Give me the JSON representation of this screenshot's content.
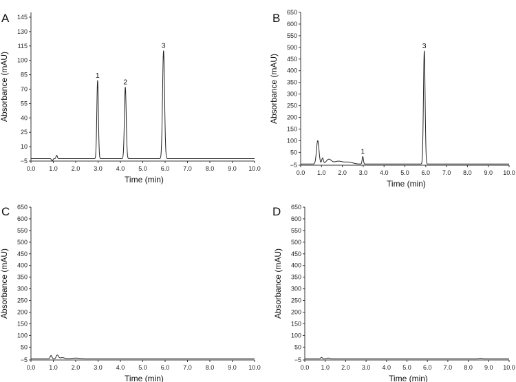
{
  "chart_data": [
    {
      "panel": "A",
      "type": "line",
      "xlabel": "Time (min)",
      "ylabel": "Absorbance (mAU)",
      "xlim": [
        0,
        10
      ],
      "ylim": [
        -5,
        150
      ],
      "xticks": [
        0,
        1,
        2,
        3,
        4,
        5,
        6,
        7,
        8,
        9,
        10
      ],
      "yticks": [
        -5,
        10,
        25,
        40,
        55,
        70,
        85,
        100,
        115,
        130,
        145
      ],
      "xtick_labels": [
        "0.0",
        "1.0",
        "2.0",
        "3.0",
        "4.0",
        "5.0",
        "6.0",
        "7.0",
        "8.0",
        "9.0",
        "10.0"
      ],
      "ytick_labels": [
        "−5",
        "10",
        "25",
        "40",
        "55",
        "70",
        "85",
        "100",
        "115",
        "130",
        "145"
      ],
      "grid": false,
      "baseline": -2.5,
      "peaks": [
        {
          "x": 0.95,
          "y": -5,
          "w": 0.03
        },
        {
          "x": 1.15,
          "y": 1,
          "w": 0.03
        },
        {
          "x": 2.98,
          "y": 79,
          "w": 0.035
        },
        {
          "x": 4.22,
          "y": 72,
          "w": 0.04
        },
        {
          "x": 5.93,
          "y": 110,
          "w": 0.045
        }
      ],
      "annotations": [
        {
          "text": "1",
          "x": 2.98,
          "y": 79
        },
        {
          "text": "2",
          "x": 4.22,
          "y": 72
        },
        {
          "text": "3",
          "x": 5.93,
          "y": 110
        }
      ]
    },
    {
      "panel": "B",
      "type": "line",
      "xlabel": "Time (min)",
      "ylabel": "Absorbance (mAU)",
      "xlim": [
        0,
        10
      ],
      "ylim": [
        -5,
        650
      ],
      "xticks": [
        0,
        1,
        2,
        3,
        4,
        5,
        6,
        7,
        8,
        9,
        10
      ],
      "yticks": [
        -5,
        50,
        100,
        150,
        200,
        250,
        300,
        350,
        400,
        450,
        500,
        550,
        600,
        650
      ],
      "xtick_labels": [
        "0.0",
        "1.0",
        "2.0",
        "3.0",
        "4.0",
        "5.0",
        "6.0",
        "7.0",
        "8.0",
        "9.0",
        "10.0"
      ],
      "ytick_labels": [
        "−5",
        "50",
        "100",
        "150",
        "200",
        "250",
        "300",
        "350",
        "400",
        "450",
        "500",
        "550",
        "600",
        "650"
      ],
      "grid": false,
      "baseline": 0,
      "peaks": [
        {
          "x": 0.82,
          "y": 100,
          "w": 0.06
        },
        {
          "x": 1.05,
          "y": 25,
          "w": 0.04
        },
        {
          "x": 1.35,
          "y": 20,
          "w": 0.12
        },
        {
          "x": 1.8,
          "y": 12,
          "w": 0.2
        },
        {
          "x": 2.3,
          "y": 8,
          "w": 0.2
        },
        {
          "x": 2.98,
          "y": 32,
          "w": 0.03
        },
        {
          "x": 5.93,
          "y": 485,
          "w": 0.04
        }
      ],
      "annotations": [
        {
          "text": "1",
          "x": 2.98,
          "y": 32
        },
        {
          "text": "3",
          "x": 5.93,
          "y": 485
        }
      ]
    },
    {
      "panel": "C",
      "type": "line",
      "xlabel": "Time (min)",
      "ylabel": "Absorbance (mAU)",
      "xlim": [
        0,
        10
      ],
      "ylim": [
        -5,
        650
      ],
      "xticks": [
        0,
        1,
        2,
        3,
        4,
        5,
        6,
        7,
        8,
        9,
        10
      ],
      "yticks": [
        -5,
        50,
        100,
        150,
        200,
        250,
        300,
        350,
        400,
        450,
        500,
        550,
        600,
        650
      ],
      "xtick_labels": [
        "0.0",
        "1.0",
        "2.0",
        "3.0",
        "4.0",
        "5.0",
        "6.0",
        "7.0",
        "8.0",
        "9.0",
        "10.0"
      ],
      "ytick_labels": [
        "−5",
        "50",
        "100",
        "150",
        "200",
        "250",
        "300",
        "350",
        "400",
        "450",
        "500",
        "550",
        "600",
        "650"
      ],
      "grid": false,
      "baseline": 0,
      "peaks": [
        {
          "x": 0.9,
          "y": 14,
          "w": 0.04
        },
        {
          "x": 1.18,
          "y": 16,
          "w": 0.05
        },
        {
          "x": 1.4,
          "y": 5,
          "w": 0.1
        },
        {
          "x": 2.0,
          "y": 3,
          "w": 0.2
        }
      ],
      "annotations": []
    },
    {
      "panel": "D",
      "type": "line",
      "xlabel": "Time (min)",
      "ylabel": "Absorbance (mAU)",
      "xlim": [
        0,
        10
      ],
      "ylim": [
        -5,
        650
      ],
      "xticks": [
        0,
        1,
        2,
        3,
        4,
        5,
        6,
        7,
        8,
        9,
        10
      ],
      "yticks": [
        -5,
        50,
        100,
        150,
        200,
        250,
        300,
        350,
        400,
        450,
        500,
        550,
        600,
        650
      ],
      "xtick_labels": [
        "0.0",
        "1.0",
        "2.0",
        "3.0",
        "4.0",
        "5.0",
        "6.0",
        "7.0",
        "8.0",
        "9.0",
        "10.0"
      ],
      "ytick_labels": [
        "−5",
        "50",
        "100",
        "150",
        "200",
        "250",
        "300",
        "350",
        "400",
        "450",
        "500",
        "550",
        "600",
        "650"
      ],
      "grid": false,
      "baseline": 0,
      "peaks": [
        {
          "x": 0.82,
          "y": 6,
          "w": 0.04
        },
        {
          "x": 1.15,
          "y": 3,
          "w": 0.08
        },
        {
          "x": 8.6,
          "y": 2,
          "w": 0.1
        }
      ],
      "annotations": []
    }
  ]
}
